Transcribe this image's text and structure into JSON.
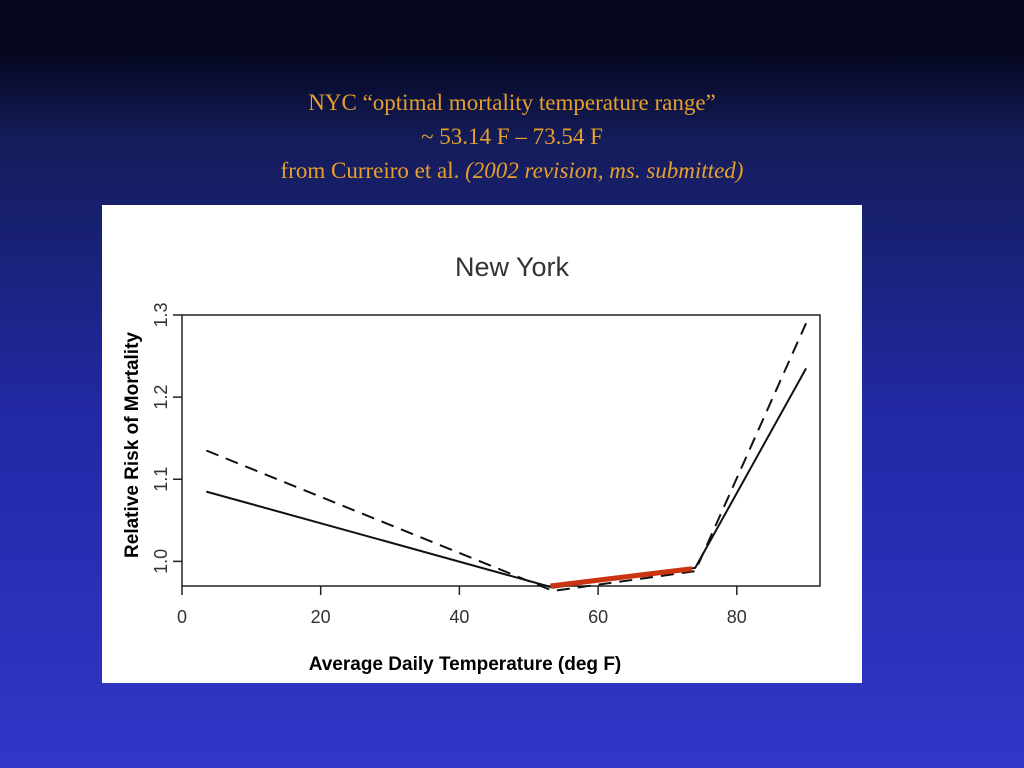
{
  "slide": {
    "title_line1": "NYC “optimal mortality temperature range”",
    "title_line2": "~ 53.14 F – 73.54 F",
    "title_line3_plain": "from Curreiro et al. ",
    "title_line3_italic": "(2002 revision, ms. submitted)"
  },
  "colors": {
    "title_text": "#e8a02a",
    "highlight_segment": "#cc3311",
    "plot_lines": "#111111",
    "figure_background": "#ffffff"
  },
  "chart_data": {
    "type": "line",
    "title": "New York",
    "xlabel": "Average Daily Temperature (deg F)",
    "ylabel": "Relative Risk of Mortality",
    "xlim": [
      0,
      92
    ],
    "ylim": [
      0.97,
      1.3
    ],
    "x_ticks": [
      0,
      20,
      40,
      60,
      80
    ],
    "y_ticks": [
      1.0,
      1.1,
      1.2,
      1.3
    ],
    "grid": false,
    "series": [
      {
        "style": "solid",
        "x": [
          3.5,
          53.5,
          74,
          90
        ],
        "y": [
          1.085,
          0.968,
          0.992,
          1.235
        ]
      },
      {
        "style": "dashed",
        "x": [
          3.5,
          53.5,
          74,
          90
        ],
        "y": [
          1.135,
          0.964,
          0.988,
          1.29
        ]
      }
    ],
    "highlight": {
      "style": "thick-red",
      "x": [
        53.14,
        73.54
      ],
      "y": [
        0.97,
        0.991
      ]
    }
  }
}
